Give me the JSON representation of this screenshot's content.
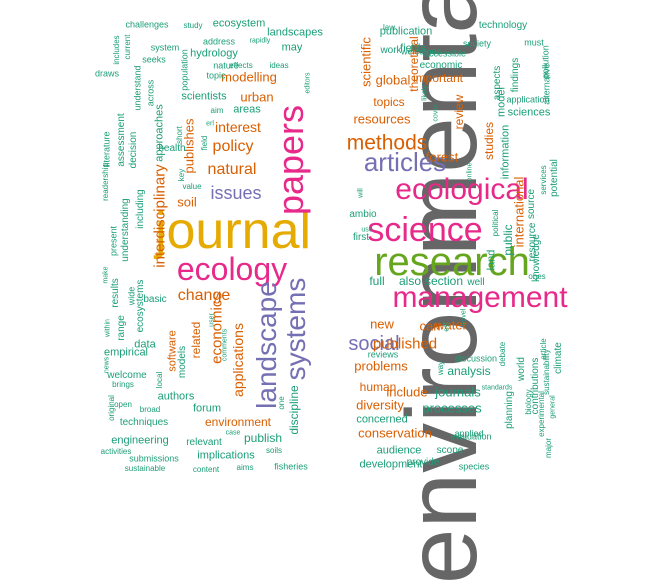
{
  "palette": {
    "teal": "#1b9e77",
    "orange": "#d95f02",
    "purple": "#7570b3",
    "magenta": "#e7298a",
    "green": "#66a61e",
    "gold": "#e6ab02",
    "brown": "#a6761d",
    "gray": "#666666"
  },
  "words": [
    {
      "text": "environmental",
      "color": "gray"
    },
    {
      "text": "journal",
      "color": "gold"
    },
    {
      "text": "research",
      "color": "green"
    },
    {
      "text": "management",
      "color": "magenta"
    },
    {
      "text": "ecology",
      "color": "magenta"
    },
    {
      "text": "science",
      "color": "magenta"
    },
    {
      "text": "ecological",
      "color": "magenta"
    },
    {
      "text": "papers",
      "color": "magenta"
    },
    {
      "text": "articles",
      "color": "purple"
    },
    {
      "text": "landscape",
      "color": "purple"
    },
    {
      "text": "systems",
      "color": "purple"
    },
    {
      "text": "methods",
      "color": "orange"
    },
    {
      "text": "social",
      "color": "purple"
    },
    {
      "text": "issues",
      "color": "purple"
    },
    {
      "text": "natural",
      "color": "orange"
    },
    {
      "text": "policy",
      "color": "orange"
    },
    {
      "text": "interdisciplinary",
      "color": "orange"
    },
    {
      "text": "economics",
      "color": "orange"
    },
    {
      "text": "change",
      "color": "orange"
    },
    {
      "text": "applications",
      "color": "orange"
    },
    {
      "text": "published",
      "color": "orange"
    },
    {
      "text": "problems",
      "color": "orange"
    },
    {
      "text": "conservation",
      "color": "orange"
    },
    {
      "text": "new",
      "color": "orange"
    },
    {
      "text": "can",
      "color": "orange"
    },
    {
      "text": "resources",
      "color": "orange"
    },
    {
      "text": "forest",
      "color": "orange"
    },
    {
      "text": "scientific",
      "color": "orange"
    },
    {
      "text": "theoretical",
      "color": "orange"
    },
    {
      "text": "global",
      "color": "orange"
    },
    {
      "text": "topics",
      "color": "orange"
    },
    {
      "text": "international",
      "color": "orange"
    },
    {
      "text": "review",
      "color": "orange"
    },
    {
      "text": "studies",
      "color": "orange"
    },
    {
      "text": "environment",
      "color": "orange"
    },
    {
      "text": "interest",
      "color": "orange"
    },
    {
      "text": "modelling",
      "color": "orange"
    },
    {
      "text": "important",
      "color": "orange"
    },
    {
      "text": "urban",
      "color": "orange"
    },
    {
      "text": "diversity",
      "color": "orange"
    },
    {
      "text": "human",
      "color": "orange"
    },
    {
      "text": "include",
      "color": "orange"
    },
    {
      "text": "publishes",
      "color": "orange"
    },
    {
      "text": "soil",
      "color": "orange"
    },
    {
      "text": "related",
      "color": "orange"
    },
    {
      "text": "software",
      "color": "orange"
    },
    {
      "text": "water",
      "color": "orange"
    },
    {
      "text": "ecosystem",
      "color": "teal"
    },
    {
      "text": "landscapes",
      "color": "teal"
    },
    {
      "text": "publication",
      "color": "teal"
    },
    {
      "text": "technology",
      "color": "teal"
    },
    {
      "text": "hydrology",
      "color": "teal"
    },
    {
      "text": "may",
      "color": "teal"
    },
    {
      "text": "scientists",
      "color": "teal"
    },
    {
      "text": "areas",
      "color": "teal"
    },
    {
      "text": "work",
      "color": "teal"
    },
    {
      "text": "fields",
      "color": "teal"
    },
    {
      "text": "economic",
      "color": "teal"
    },
    {
      "text": "accessible",
      "color": "teal"
    },
    {
      "text": "society",
      "color": "teal"
    },
    {
      "text": "challenges",
      "color": "teal"
    },
    {
      "text": "study",
      "color": "teal"
    },
    {
      "text": "address",
      "color": "teal"
    },
    {
      "text": "rapidly",
      "color": "teal"
    },
    {
      "text": "nature",
      "color": "teal"
    },
    {
      "text": "topic",
      "color": "teal"
    },
    {
      "text": "effects",
      "color": "teal"
    },
    {
      "text": "ideas",
      "color": "teal"
    },
    {
      "text": "editors",
      "color": "teal"
    },
    {
      "text": "aim",
      "color": "teal"
    },
    {
      "text": "erl",
      "color": "teal"
    },
    {
      "text": "health",
      "color": "teal"
    },
    {
      "text": "key",
      "color": "teal"
    },
    {
      "text": "value",
      "color": "teal"
    },
    {
      "text": "decision",
      "color": "teal"
    },
    {
      "text": "understanding",
      "color": "teal"
    },
    {
      "text": "including",
      "color": "teal"
    },
    {
      "text": "approaches",
      "color": "teal"
    },
    {
      "text": "assessment",
      "color": "teal"
    },
    {
      "text": "across",
      "color": "teal"
    },
    {
      "text": "understand",
      "color": "teal"
    },
    {
      "text": "system",
      "color": "teal"
    },
    {
      "text": "includes",
      "color": "teal"
    },
    {
      "text": "current",
      "color": "teal"
    },
    {
      "text": "seeks",
      "color": "teal"
    },
    {
      "text": "literature",
      "color": "teal"
    },
    {
      "text": "draws",
      "color": "teal"
    },
    {
      "text": "population",
      "color": "teal"
    },
    {
      "text": "readership",
      "color": "teal"
    },
    {
      "text": "short",
      "color": "teal"
    },
    {
      "text": "field",
      "color": "teal"
    },
    {
      "text": "basic",
      "color": "teal"
    },
    {
      "text": "present",
      "color": "teal"
    },
    {
      "text": "results",
      "color": "teal"
    },
    {
      "text": "make",
      "color": "teal"
    },
    {
      "text": "wide",
      "color": "teal"
    },
    {
      "text": "ecosystems",
      "color": "teal"
    },
    {
      "text": "range",
      "color": "teal"
    },
    {
      "text": "within",
      "color": "teal"
    },
    {
      "text": "data",
      "color": "teal"
    },
    {
      "text": "models",
      "color": "teal"
    },
    {
      "text": "user",
      "color": "teal"
    },
    {
      "text": "comments",
      "color": "teal"
    },
    {
      "text": "news",
      "color": "teal"
    },
    {
      "text": "empirical",
      "color": "teal"
    },
    {
      "text": "welcome",
      "color": "teal"
    },
    {
      "text": "local",
      "color": "teal"
    },
    {
      "text": "brings",
      "color": "teal"
    },
    {
      "text": "original",
      "color": "teal"
    },
    {
      "text": "open",
      "color": "teal"
    },
    {
      "text": "authors",
      "color": "teal"
    },
    {
      "text": "broad",
      "color": "teal"
    },
    {
      "text": "techniques",
      "color": "teal"
    },
    {
      "text": "forum",
      "color": "teal"
    },
    {
      "text": "case",
      "color": "teal"
    },
    {
      "text": "relevant",
      "color": "teal"
    },
    {
      "text": "engineering",
      "color": "teal"
    },
    {
      "text": "activities",
      "color": "teal"
    },
    {
      "text": "submissions",
      "color": "teal"
    },
    {
      "text": "sustainable",
      "color": "teal"
    },
    {
      "text": "implications",
      "color": "teal"
    },
    {
      "text": "content",
      "color": "teal"
    },
    {
      "text": "aims",
      "color": "teal"
    },
    {
      "text": "publish",
      "color": "teal"
    },
    {
      "text": "soils",
      "color": "teal"
    },
    {
      "text": "fisheries",
      "color": "teal"
    },
    {
      "text": "discipline",
      "color": "teal"
    },
    {
      "text": "one",
      "color": "teal"
    },
    {
      "text": "development",
      "color": "teal"
    },
    {
      "text": "audience",
      "color": "teal"
    },
    {
      "text": "provide",
      "color": "teal"
    },
    {
      "text": "species",
      "color": "teal"
    },
    {
      "text": "scope",
      "color": "teal"
    },
    {
      "text": "evaluation",
      "color": "teal"
    },
    {
      "text": "applied",
      "color": "teal"
    },
    {
      "text": "concerned",
      "color": "teal"
    },
    {
      "text": "processes",
      "color": "teal"
    },
    {
      "text": "journals",
      "color": "teal"
    },
    {
      "text": "analysis",
      "color": "teal"
    },
    {
      "text": "reviews",
      "color": "teal"
    },
    {
      "text": "discussion",
      "color": "teal"
    },
    {
      "text": "standards",
      "color": "teal"
    },
    {
      "text": "novel",
      "color": "teal"
    },
    {
      "text": "way",
      "color": "teal"
    },
    {
      "text": "est",
      "color": "teal"
    },
    {
      "text": "full",
      "color": "teal"
    },
    {
      "text": "also",
      "color": "teal"
    },
    {
      "text": "section",
      "color": "teal"
    },
    {
      "text": "well",
      "color": "teal"
    },
    {
      "text": "land",
      "color": "teal"
    },
    {
      "text": "public",
      "color": "teal"
    },
    {
      "text": "resource",
      "color": "teal"
    },
    {
      "text": "knowledge",
      "color": "teal"
    },
    {
      "text": "ones",
      "color": "teal"
    },
    {
      "text": "ambio",
      "color": "teal"
    },
    {
      "text": "use",
      "color": "teal"
    },
    {
      "text": "first",
      "color": "teal"
    },
    {
      "text": "will",
      "color": "teal"
    },
    {
      "text": "online",
      "color": "teal"
    },
    {
      "text": "political",
      "color": "teal"
    },
    {
      "text": "source",
      "color": "teal"
    },
    {
      "text": "services",
      "color": "teal"
    },
    {
      "text": "potential",
      "color": "teal"
    },
    {
      "text": "information",
      "color": "teal"
    },
    {
      "text": "model",
      "color": "teal"
    },
    {
      "text": "sciences",
      "color": "teal"
    },
    {
      "text": "aspects",
      "color": "teal"
    },
    {
      "text": "findings",
      "color": "teal"
    },
    {
      "text": "application",
      "color": "teal"
    },
    {
      "text": "must",
      "color": "teal"
    },
    {
      "text": "pollution",
      "color": "teal"
    },
    {
      "text": "alternative",
      "color": "teal"
    },
    {
      "text": "welcomes",
      "color": "teal"
    },
    {
      "text": "law",
      "color": "teal"
    },
    {
      "text": "likely",
      "color": "teal"
    },
    {
      "text": "cover",
      "color": "teal"
    },
    {
      "text": "debate",
      "color": "teal"
    },
    {
      "text": "world",
      "color": "teal"
    },
    {
      "text": "contributions",
      "color": "teal"
    },
    {
      "text": "sustainability",
      "color": "teal"
    },
    {
      "text": "article",
      "color": "teal"
    },
    {
      "text": "climate",
      "color": "teal"
    },
    {
      "text": "planning",
      "color": "teal"
    },
    {
      "text": "biology",
      "color": "teal"
    },
    {
      "text": "experimental",
      "color": "teal"
    },
    {
      "text": "general",
      "color": "teal"
    },
    {
      "text": "major",
      "color": "teal"
    },
    {
      "text": "founded",
      "color": "teal"
    }
  ]
}
